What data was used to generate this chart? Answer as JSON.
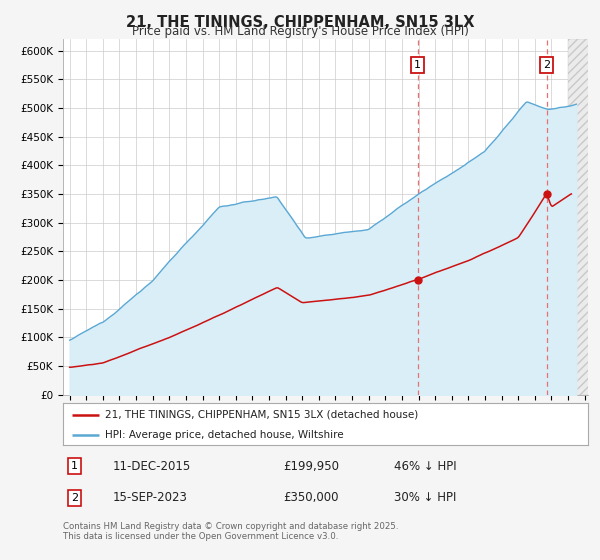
{
  "title": "21, THE TININGS, CHIPPENHAM, SN15 3LX",
  "subtitle": "Price paid vs. HM Land Registry's House Price Index (HPI)",
  "ylim": [
    0,
    620000
  ],
  "yticks": [
    0,
    50000,
    100000,
    150000,
    200000,
    250000,
    300000,
    350000,
    400000,
    450000,
    500000,
    550000,
    600000
  ],
  "ytick_labels": [
    "£0",
    "£50K",
    "£100K",
    "£150K",
    "£200K",
    "£250K",
    "£300K",
    "£350K",
    "£400K",
    "£450K",
    "£500K",
    "£550K",
    "£600K"
  ],
  "xlim_start": 1994.6,
  "xlim_end": 2026.2,
  "hpi_color": "#5ba8d4",
  "price_color": "#cc1111",
  "vline_color": "#e87070",
  "hpi_fill_color": "#daeef8",
  "marker1_x": 2015.94,
  "marker1_y": 199950,
  "marker1_label": "1",
  "marker1_date": "11-DEC-2015",
  "marker1_price": "£199,950",
  "marker1_note": "46% ↓ HPI",
  "marker2_x": 2023.71,
  "marker2_y": 350000,
  "marker2_label": "2",
  "marker2_date": "15-SEP-2023",
  "marker2_price": "£350,000",
  "marker2_note": "30% ↓ HPI",
  "legend_line1": "21, THE TININGS, CHIPPENHAM, SN15 3LX (detached house)",
  "legend_line2": "HPI: Average price, detached house, Wiltshire",
  "footer": "Contains HM Land Registry data © Crown copyright and database right 2025.\nThis data is licensed under the Open Government Licence v3.0.",
  "bg_color": "#f5f5f5",
  "plot_bg_color": "#ffffff"
}
